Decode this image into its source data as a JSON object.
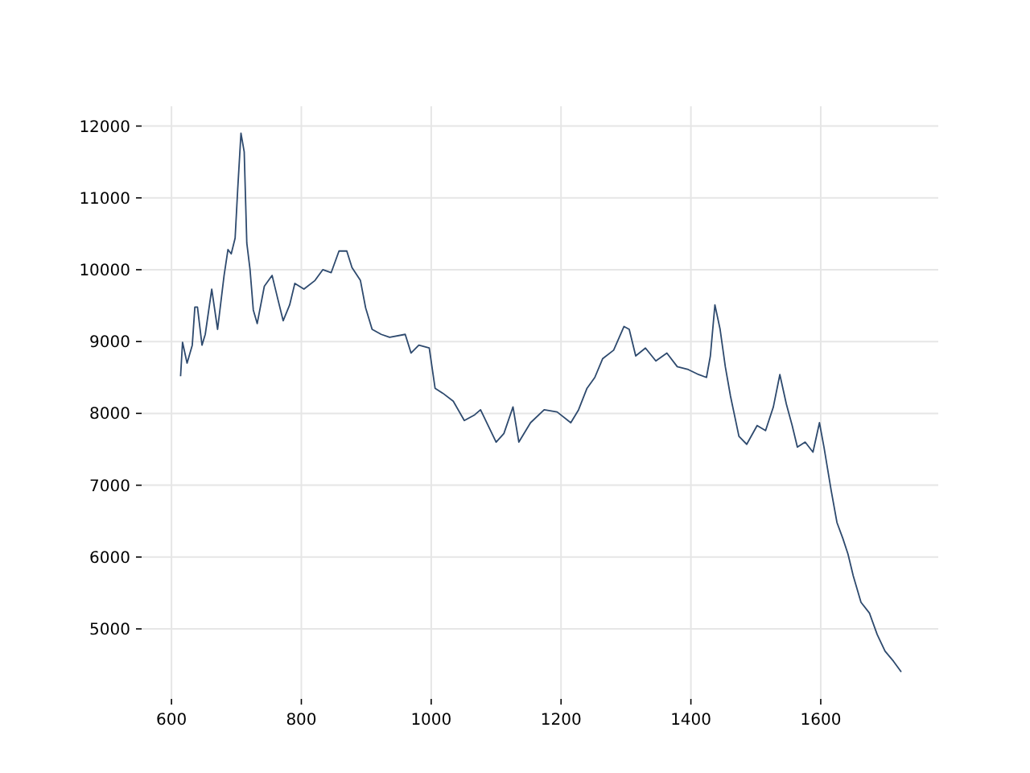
{
  "chart_data": {
    "type": "line",
    "xlim": [
      554,
      1781
    ],
    "ylim": [
      4025,
      12275
    ],
    "xticks": [
      600,
      800,
      1000,
      1200,
      1400,
      1600
    ],
    "yticks": [
      5000,
      6000,
      7000,
      8000,
      9000,
      10000,
      11000,
      12000
    ],
    "grid": true,
    "x": [
      614,
      617,
      624,
      632,
      636,
      640,
      647,
      652,
      662,
      671,
      681,
      687,
      692,
      698,
      702,
      707,
      712,
      716,
      721,
      726,
      732,
      743,
      755,
      763,
      772,
      782,
      790,
      804,
      821,
      833,
      846,
      858,
      870,
      878,
      891,
      899,
      909,
      923,
      936,
      960,
      969,
      981,
      997,
      1006,
      1018,
      1034,
      1051,
      1067,
      1076,
      1100,
      1112,
      1126,
      1135,
      1153,
      1174,
      1194,
      1215,
      1227,
      1240,
      1252,
      1264,
      1281,
      1297,
      1305,
      1315,
      1330,
      1346,
      1363,
      1379,
      1396,
      1412,
      1424,
      1430,
      1437,
      1445,
      1453,
      1461,
      1474,
      1486,
      1502,
      1515,
      1527,
      1537,
      1547,
      1556,
      1564,
      1576,
      1588,
      1598,
      1605,
      1616,
      1625,
      1634,
      1642,
      1650,
      1662,
      1675,
      1687,
      1699,
      1712,
      1724
    ],
    "series": [
      {
        "color": "#2e4a6e",
        "values": [
          8517,
          8990,
          8700,
          8950,
          9480,
          9480,
          8950,
          9100,
          9730,
          9170,
          9920,
          10280,
          10220,
          10440,
          11120,
          11900,
          11640,
          10370,
          10000,
          9440,
          9250,
          9770,
          9920,
          9620,
          9290,
          9510,
          9810,
          9730,
          9850,
          10000,
          9960,
          10260,
          10260,
          10030,
          9850,
          9470,
          9170,
          9100,
          9060,
          9100,
          8840,
          8950,
          8910,
          8350,
          8280,
          8170,
          7900,
          7980,
          8050,
          7600,
          7720,
          8090,
          7600,
          7870,
          8050,
          8020,
          7870,
          8050,
          8350,
          8500,
          8760,
          8880,
          9210,
          9170,
          8800,
          8910,
          8730,
          8840,
          8650,
          8610,
          8540,
          8500,
          8800,
          9510,
          9170,
          8650,
          8240,
          7680,
          7570,
          7830,
          7760,
          8090,
          8540,
          8130,
          7830,
          7530,
          7600,
          7460,
          7870,
          7530,
          6930,
          6480,
          6260,
          6040,
          5740,
          5370,
          5220,
          4920,
          4690,
          4550,
          4400
        ]
      }
    ]
  }
}
